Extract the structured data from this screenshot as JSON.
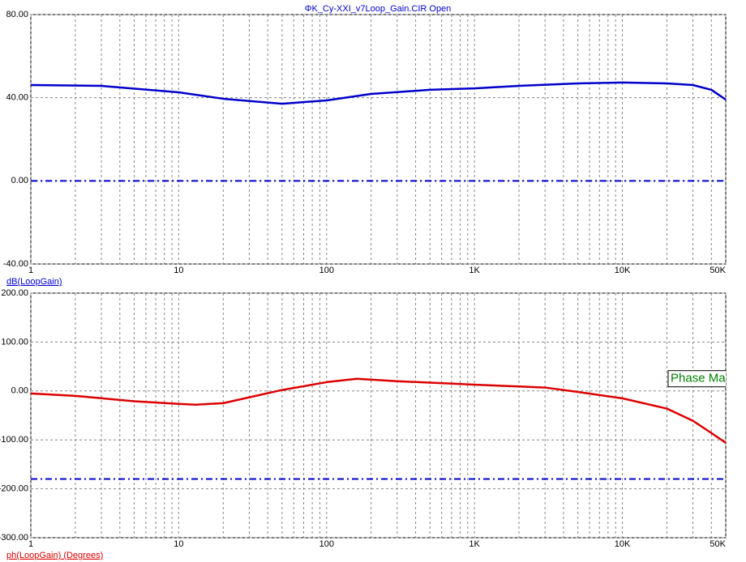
{
  "chart_data": [
    {
      "type": "line",
      "title": "ΦK_Cy-XXI_v7Loop_Gain.CIR Open",
      "log_x": true,
      "grid": true,
      "xlim": [
        1,
        50000
      ],
      "xticks": [
        1,
        10,
        100,
        {
          "value": 1000,
          "label": "1K"
        },
        {
          "value": 10000,
          "label": "10K"
        },
        {
          "value": 50000,
          "label": "50K"
        }
      ],
      "minor_xticks": [
        2,
        3,
        4,
        5,
        6,
        7,
        8,
        9,
        20,
        30,
        40,
        50,
        60,
        70,
        80,
        90,
        200,
        300,
        400,
        500,
        600,
        700,
        800,
        900,
        2000,
        3000,
        4000,
        5000,
        6000,
        7000,
        8000,
        9000,
        20000,
        30000,
        40000
      ],
      "ylim": [
        -40,
        80
      ],
      "yticks": [
        {
          "value": -40,
          "label": "-40.00"
        },
        {
          "value": 0,
          "label": "0.00"
        },
        {
          "value": 40,
          "label": "40.00"
        },
        {
          "value": 80,
          "label": "80.00"
        }
      ],
      "reference_lines": [
        {
          "value": 0,
          "color": "#0000cc"
        }
      ],
      "x": [
        1,
        3,
        10,
        20,
        50,
        100,
        200,
        500,
        1000,
        2000,
        5000,
        10000,
        20000,
        30000,
        40000,
        50000
      ],
      "series": [
        {
          "name": "dB(LoopGain)",
          "color": "#0000cc",
          "values": [
            46.1,
            45.7,
            42.6,
            39.5,
            37.1,
            38.7,
            41.8,
            43.8,
            44.5,
            45.7,
            46.9,
            47.3,
            46.9,
            46.1,
            43.8,
            39.1
          ]
        }
      ]
    },
    {
      "type": "line",
      "log_x": true,
      "grid": true,
      "xlim": [
        1,
        50000
      ],
      "xticks": [
        1,
        10,
        100,
        {
          "value": 1000,
          "label": "1K"
        },
        {
          "value": 10000,
          "label": "10K"
        },
        {
          "value": 50000,
          "label": "50K"
        }
      ],
      "minor_xticks": [
        2,
        3,
        4,
        5,
        6,
        7,
        8,
        9,
        20,
        30,
        40,
        50,
        60,
        70,
        80,
        90,
        200,
        300,
        400,
        500,
        600,
        700,
        800,
        900,
        2000,
        3000,
        4000,
        5000,
        6000,
        7000,
        8000,
        9000,
        20000,
        30000,
        40000
      ],
      "ylim": [
        -300,
        200
      ],
      "yticks": [
        {
          "value": -300,
          "label": "-300.00"
        },
        {
          "value": -200,
          "label": "-200.00"
        },
        {
          "value": -100,
          "label": "-100.00"
        },
        {
          "value": 0,
          "label": "0.00"
        },
        {
          "value": 100,
          "label": "100.00"
        },
        {
          "value": 200,
          "label": "200.00"
        }
      ],
      "reference_lines": [
        {
          "value": -180,
          "color": "#0000cc"
        }
      ],
      "annotation": "Phase Ma",
      "x": [
        1,
        2,
        5,
        10,
        13,
        20,
        50,
        100,
        160,
        300,
        1000,
        3000,
        5000,
        10000,
        20000,
        30000,
        40000,
        50000
      ],
      "series": [
        {
          "name": "ph(LoopGain) (Degrees)",
          "color": "#dd0000",
          "values": [
            -5,
            -10,
            -21,
            -26.5,
            -28,
            -25,
            2,
            18,
            25,
            20,
            13,
            7,
            -2,
            -15,
            -36,
            -61,
            -86,
            -106
          ]
        }
      ]
    }
  ]
}
